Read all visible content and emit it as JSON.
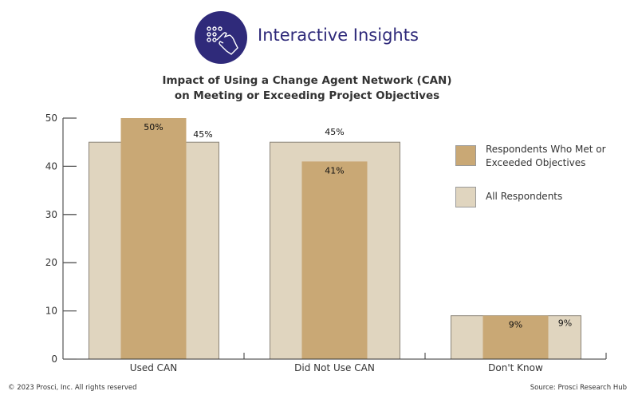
{
  "header": {
    "brand": "Interactive Insights",
    "logo_icon": "touch-hand-icon"
  },
  "chart_data": {
    "type": "bar",
    "title": "Impact of Using a Change Agent Network (CAN) on Meeting or Exceeding Project Objectives",
    "title_lines": [
      "Impact of Using a Change Agent Network (CAN)",
      "on Meeting or Exceeding Project Objectives"
    ],
    "categories": [
      "Used CAN",
      "Did Not Use CAN",
      "Don't Know"
    ],
    "series": [
      {
        "name": "Respondents Who Met or Exceeded Objectives",
        "values": [
          50,
          41,
          9
        ],
        "labels": [
          "50%",
          "41%",
          "9%"
        ],
        "color": "#c9a875"
      },
      {
        "name": "All Respondents",
        "values": [
          45,
          45,
          9
        ],
        "labels": [
          "45%",
          "45%",
          "9%"
        ],
        "color": "#e0d5bf"
      }
    ],
    "ylim": [
      0,
      50
    ],
    "yticks": [
      "0",
      "10",
      "20",
      "30",
      "40",
      "50"
    ],
    "grid": false,
    "legend": "right"
  },
  "footer": {
    "copyright": "© 2023 Prosci, Inc. All rights reserved",
    "source": "Source: Prosci Research Hub"
  }
}
